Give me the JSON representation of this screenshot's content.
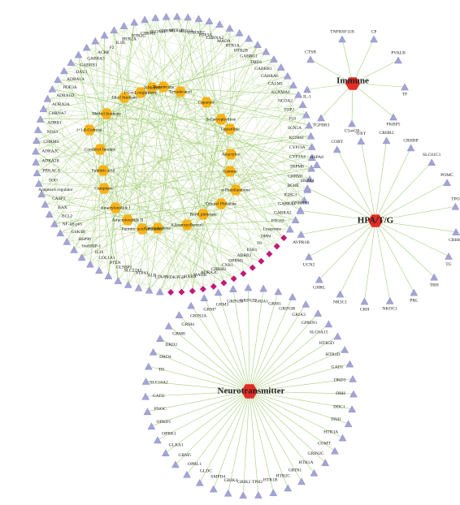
{
  "colors": {
    "edge": "#9cc96b",
    "target": "#a3a3d6",
    "target_stroke": "#8585c0",
    "compound": "#f7b319",
    "pathway": "#e62c26",
    "bridge": "#c2187a",
    "label": "#202020"
  },
  "hubs": [
    {
      "id": "immune",
      "label": "Immune"
    },
    {
      "id": "hpa",
      "label": "HPA/T/G"
    },
    {
      "id": "neuro",
      "label": "Neurotransmitter"
    }
  ],
  "compound_labels": [
    "9-Methyl",
    "Ethyl linoleate",
    "(+)-α-Longipinene",
    "Tetradecane",
    "Tetradecanol",
    "Caparene",
    "Methyl linoleate",
    "β-Caryophyllene",
    "(+)-β-Cedrene",
    "Atractylon",
    "Coniferyl ferulate",
    "Ligustilide",
    "Palmitic acid",
    "Gamma",
    "Cumphene",
    "α-Phenllandrene",
    "Atractylenolide I",
    "Dibutyl Phthalate",
    "Atractylenolide II",
    "Butyl phthalate",
    "Palmitic acid ethylester",
    "Caryophyllene",
    "4-Isopropylbenzyl"
  ],
  "outer_ring_labels": [
    "CHRNB2",
    "PDE3A",
    "CHRNA2",
    "MAOA",
    "HTR1A",
    "HTR2B",
    "GABRG1",
    "DRD1",
    "GABRB3",
    "GABRA6",
    "CALM1",
    "KCNMA1",
    "NCOA2",
    "TOP2",
    "F10",
    "SCN5A",
    "KCNH2",
    "CYP19A",
    "CYP3A4",
    "TRPM8",
    "CHRM1",
    "BCHE",
    "IGHG1",
    "GABRA1",
    "GABRA2",
    "PTGS2",
    "Lysozyme",
    "DPP4",
    "F8",
    "ESR1",
    "ADRB2",
    "OPRM1",
    "CNR1",
    "CHRM2",
    "ADRA2C",
    "MAOB",
    "RXRA",
    "PGR",
    "VDR",
    "LTA4H",
    "ALB",
    "PTPN1",
    "SLC22A5",
    "GLSBP1",
    "PTEN",
    "COL1A1",
    "IL10",
    "bioHMP-1",
    "HSP90",
    "GSK3B",
    "NF-kB p65",
    "BCL2",
    "BAX",
    "CASP3",
    "Apoptosis regulator",
    "SOD",
    "PRKACA",
    "ADRA2B",
    "ADRA2C",
    "CHRM4",
    "NOS3",
    "ADRB1",
    "CHRNA7",
    "ADRA2A",
    "ADRA1D",
    "PDE3A",
    "ADRA1A",
    "DAU1",
    "GABRB1",
    "GABRA5",
    "ACHE",
    "F2",
    "IL1B",
    "HTR2A",
    "HTR2C",
    "CHRM3",
    "SLC6A4",
    "CHRM5",
    "HTR1B",
    "HTR3A"
  ],
  "immune_labels": [
    "TNFRSF11B",
    "CP",
    "PVALB",
    "TF",
    "FKBP5",
    "C5orf20",
    "TGFBR3",
    "IL-1",
    "CTSB"
  ],
  "hpa_labels": [
    "CRHBP",
    "SLC01C1",
    "POMC",
    "TPO",
    "CRHR1",
    "TG",
    "TRH",
    "PRL",
    "NKOC1",
    "CRH",
    "NR3C1",
    "GHRL",
    "UCN2",
    "AVPR1B",
    "GNRHR1",
    "HSPA4",
    "HSPA8",
    "CORT",
    "OXT",
    "CRHR2"
  ],
  "neuro_labels": [
    "GRM1",
    "GRIN3B",
    "GRIA3",
    "GPRIN1",
    "SLC6A15",
    "HTR5D",
    "HTR4D",
    "GAD1",
    "DRD3",
    "DBH",
    "DDC1",
    "TPH1",
    "HTR3A",
    "COMT",
    "GRIN2C",
    "HTR1A",
    "GRIN1",
    "HTR2C",
    "HTR1B",
    "TPH2",
    "GRIK2",
    "GRIK4",
    "SMPD4",
    "GLDC",
    "OPRL1",
    "GRM5",
    "GLRA1",
    "OPRK1",
    "OPRD1",
    "PNOC",
    "GAD2",
    "SLC18A2",
    "TH",
    "DRD4",
    "DRD2",
    "GRM8",
    "GRM4",
    "GRIN2A",
    "GRM7",
    "GRM3",
    "GRIN2B",
    "GRIN2D",
    "GRIA1"
  ]
}
